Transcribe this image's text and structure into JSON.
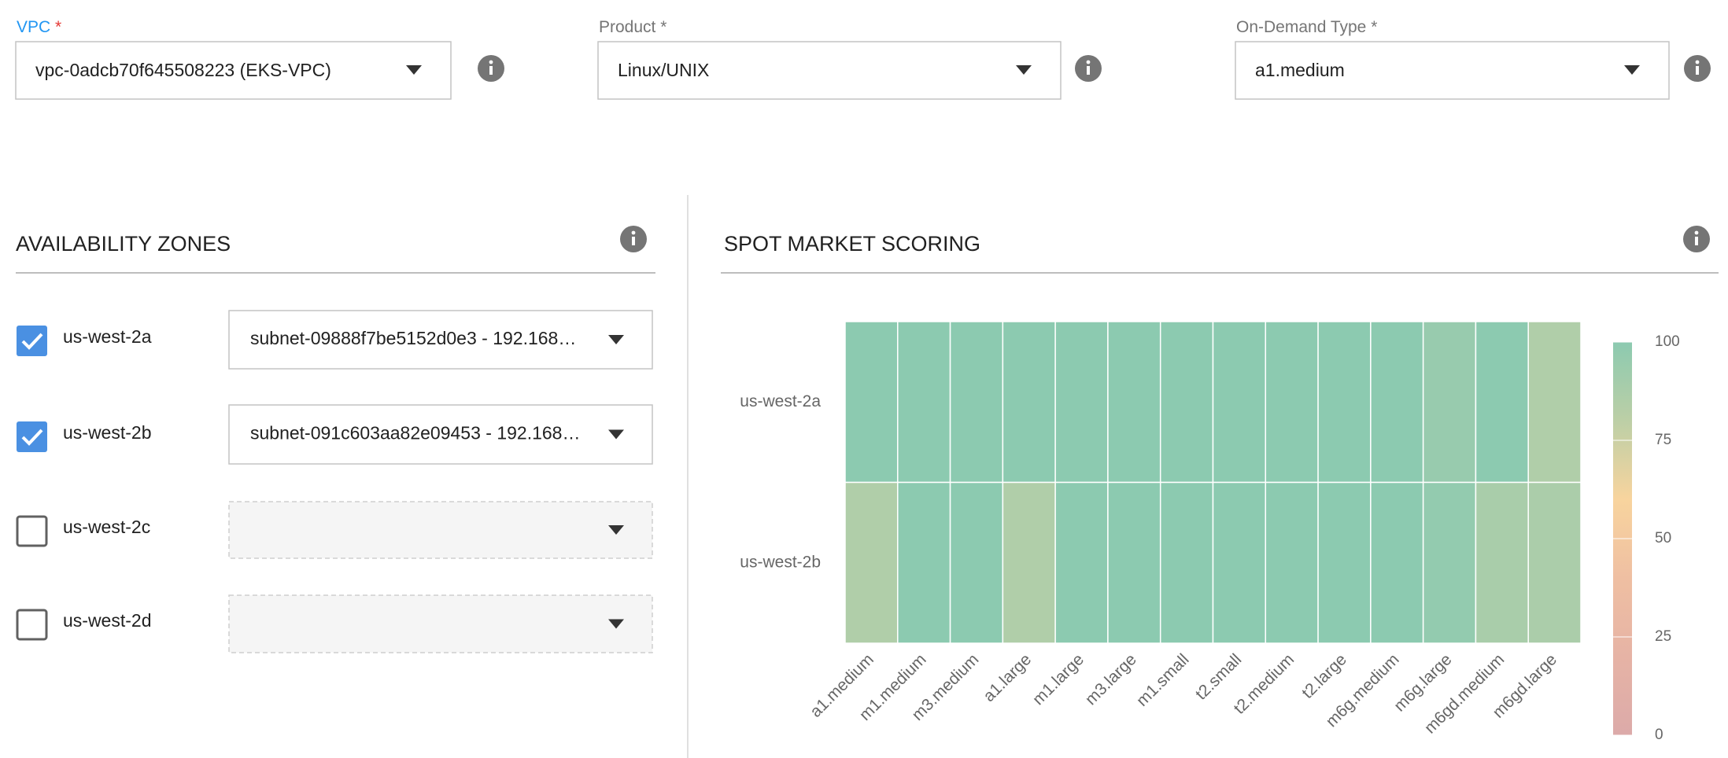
{
  "form": {
    "fields": [
      {
        "label": "VPC",
        "required": "*",
        "value": "vpc-0adcb70f645508223 (EKS-VPC)",
        "focused": true
      },
      {
        "label": "Product",
        "required": "*",
        "value": "Linux/UNIX",
        "focused": false
      },
      {
        "label": "On-Demand Type",
        "required": "*",
        "value": "a1.medium",
        "focused": false
      }
    ]
  },
  "availability_zones": {
    "title": "AVAILABILITY ZONES",
    "zones": [
      {
        "name": "us-west-2a",
        "checked": true,
        "subnet": "subnet-09888f7be5152d0e3 - 192.168…"
      },
      {
        "name": "us-west-2b",
        "checked": true,
        "subnet": "subnet-091c603aa82e09453 - 192.168…"
      },
      {
        "name": "us-west-2c",
        "checked": false
      },
      {
        "name": "us-west-2d",
        "checked": false
      }
    ]
  },
  "chart_data": {
    "type": "heatmap",
    "title": "SPOT MARKET SCORING",
    "x": [
      "a1.medium",
      "m1.medium",
      "m3.medium",
      "a1.large",
      "m1.large",
      "m3.large",
      "m1.small",
      "t2.small",
      "t2.medium",
      "t2.large",
      "m6g.medium",
      "m6g.large",
      "m6gd.medium",
      "m6gd.large"
    ],
    "y": [
      "us-west-2a",
      "us-west-2b"
    ],
    "values": [
      [
        100,
        100,
        100,
        100,
        100,
        100,
        100,
        100,
        100,
        100,
        100,
        95,
        100,
        85
      ],
      [
        85,
        100,
        100,
        85,
        100,
        100,
        100,
        100,
        100,
        100,
        100,
        97,
        88,
        87
      ]
    ],
    "zlim": [
      0,
      100
    ],
    "zticks": [
      0,
      25,
      50,
      75,
      100
    ],
    "colorscale": [
      "#dcaaa9",
      "#e6b3a5",
      "#efbfa2",
      "#f8d49e",
      "#bccfa6",
      "#8ccab0"
    ]
  }
}
